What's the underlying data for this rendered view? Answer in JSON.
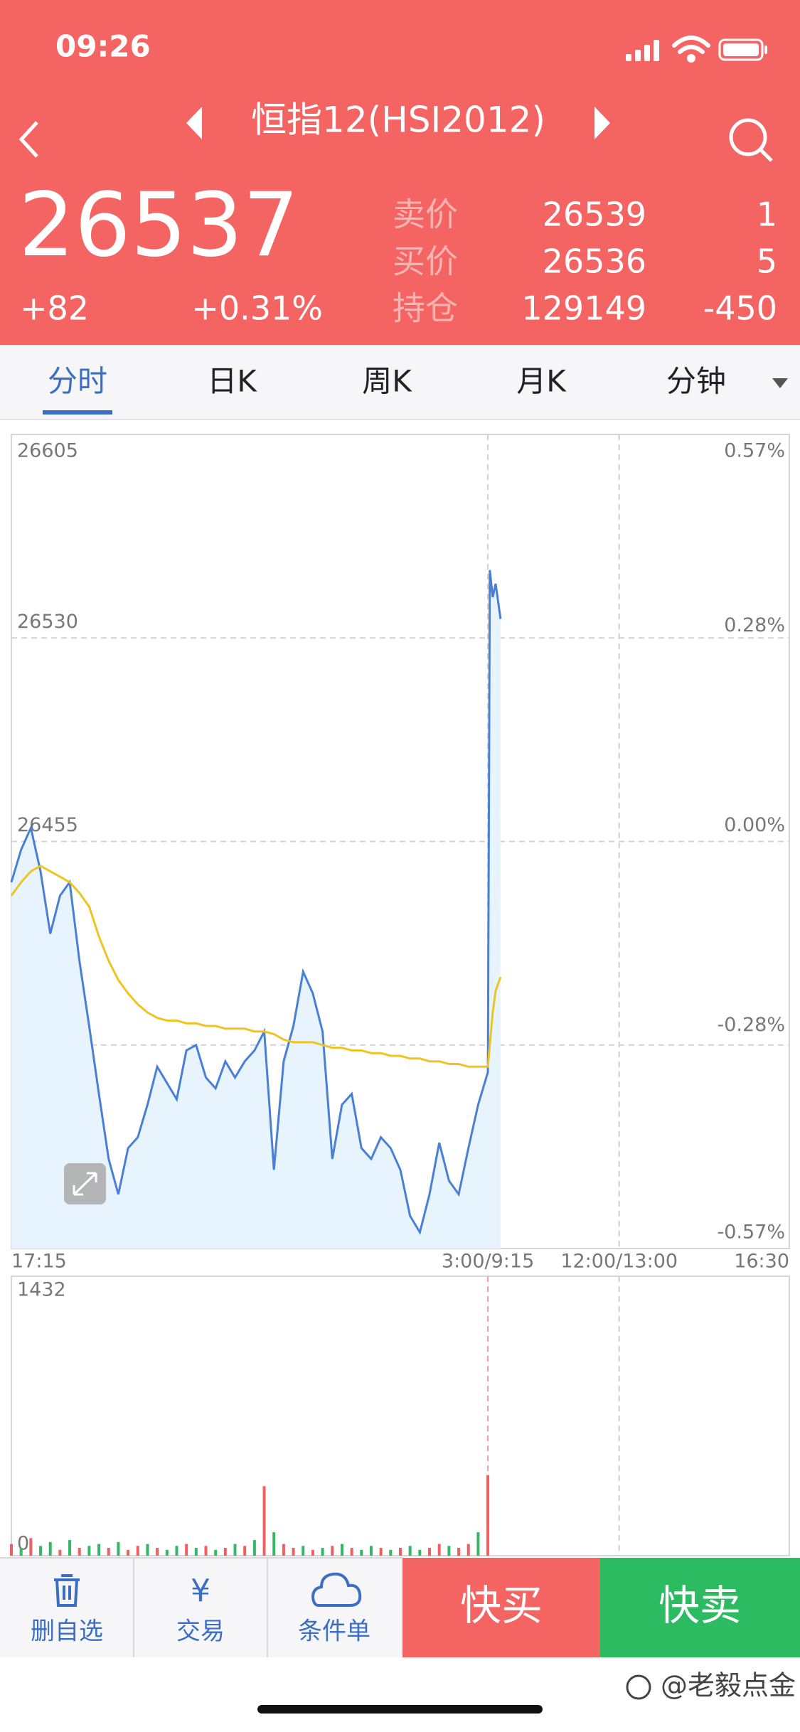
{
  "status_bar": {
    "time": "09:26"
  },
  "header": {
    "title": "恒指12(HSI2012)"
  },
  "quote": {
    "price": "26537",
    "change": "+82",
    "change_pct": "+0.31%",
    "rows": [
      {
        "label": "卖价",
        "value": "26539",
        "qty": "1"
      },
      {
        "label": "买价",
        "value": "26536",
        "qty": "5"
      },
      {
        "label": "持仓",
        "value": "129149",
        "qty": "-450"
      }
    ]
  },
  "tabs": [
    "分时",
    "日K",
    "周K",
    "月K",
    "分钟"
  ],
  "active_tab": 0,
  "chart_data": [
    {
      "type": "line",
      "x": [
        0,
        1,
        2,
        3,
        4,
        5,
        6,
        7,
        8,
        9,
        10,
        11,
        12,
        13,
        14,
        15,
        16,
        17,
        18,
        19,
        20,
        21,
        22,
        23,
        24,
        25,
        26,
        27,
        28,
        29,
        30,
        31,
        32,
        33,
        34,
        35,
        36,
        37,
        38,
        39,
        40,
        41,
        42,
        43,
        44,
        45,
        46,
        47,
        48,
        49,
        49.2,
        49.5,
        49.8,
        50.3
      ],
      "series": [
        {
          "color": "#4a7fd6",
          "fill": "#e8f4fd",
          "values": [
            26440,
            26452,
            26460,
            26444,
            26421,
            26435,
            26440,
            26411,
            26387,
            26362,
            26338,
            26325,
            26342,
            26346,
            26358,
            26372,
            26366,
            26360,
            26378,
            26380,
            26368,
            26364,
            26374,
            26368,
            26374,
            26378,
            26385,
            26334,
            26374,
            26387,
            26407,
            26399,
            26385,
            26338,
            26358,
            26362,
            26342,
            26338,
            26346,
            26342,
            26334,
            26317,
            26311,
            26325,
            26344,
            26330,
            26325,
            26342,
            26358,
            26370,
            26555,
            26545,
            26550,
            26537
          ]
        },
        {
          "color": "#f0c420",
          "values": [
            26435,
            26440,
            26444,
            26446,
            26444,
            26442,
            26440,
            26436,
            26431,
            26420,
            26411,
            26404,
            26399,
            26395,
            26392,
            26390,
            26389,
            26389,
            26388,
            26388,
            26387,
            26387,
            26386,
            26386,
            26386,
            26385,
            26385,
            26384,
            26382,
            26381,
            26381,
            26381,
            26380,
            26379,
            26379,
            26378,
            26378,
            26377,
            26377,
            26376,
            26376,
            26375,
            26375,
            26374,
            26374,
            26373,
            26373,
            26372,
            26372,
            26372,
            26380,
            26392,
            26400,
            26405
          ]
        }
      ],
      "xlim": [
        0,
        80
      ],
      "xticks": [
        {
          "value": 0,
          "label": "17:15"
        },
        {
          "value": 49,
          "label": "3:00/9:15"
        },
        {
          "value": 62.5,
          "label": "12:00/13:00"
        },
        {
          "value": 80,
          "label": "16:30"
        }
      ],
      "ylim": [
        26305,
        26605
      ],
      "yticks": [
        26305,
        26380,
        26455,
        26530,
        26605
      ],
      "y2lim": [
        -0.57,
        0.57
      ],
      "y2ticks": [
        {
          "value": 0.57,
          "label": "0.57%"
        },
        {
          "value": 0.28,
          "label": "0.28%"
        },
        {
          "value": 0,
          "label": "0.00%"
        },
        {
          "value": -0.28,
          "label": "-0.28%"
        },
        {
          "value": -0.57,
          "label": "-0.57%"
        }
      ],
      "grid": true
    },
    {
      "type": "bar",
      "x": [
        0,
        1,
        2,
        3,
        4,
        5,
        6,
        7,
        8,
        9,
        10,
        11,
        12,
        13,
        14,
        15,
        16,
        17,
        18,
        19,
        20,
        21,
        22,
        23,
        24,
        25,
        26,
        27,
        28,
        29,
        30,
        31,
        32,
        33,
        34,
        35,
        36,
        37,
        38,
        39,
        40,
        41,
        42,
        43,
        44,
        45,
        46,
        47,
        48,
        49
      ],
      "values": [
        60,
        40,
        90,
        50,
        70,
        30,
        80,
        40,
        50,
        60,
        40,
        70,
        30,
        50,
        60,
        40,
        30,
        50,
        60,
        40,
        50,
        30,
        40,
        60,
        50,
        80,
        356,
        120,
        60,
        40,
        50,
        30,
        40,
        50,
        60,
        40,
        30,
        50,
        40,
        30,
        40,
        50,
        30,
        40,
        60,
        50,
        40,
        60,
        120,
        413
      ],
      "colors": [
        "#f06060",
        "#35b865",
        "#f06060",
        "#35b865",
        "#35b865",
        "#f06060",
        "#35b865",
        "#f06060",
        "#35b865",
        "#35b865",
        "#f06060",
        "#35b865",
        "#f06060",
        "#f06060",
        "#35b865",
        "#f06060",
        "#35b865",
        "#35b865",
        "#f06060",
        "#35b865",
        "#f06060",
        "#35b865",
        "#f06060",
        "#35b865",
        "#f06060",
        "#35b865",
        "#f06060",
        "#35b865",
        "#f06060",
        "#f06060",
        "#35b865",
        "#f06060",
        "#35b865",
        "#f06060",
        "#35b865",
        "#f06060",
        "#35b865",
        "#35b865",
        "#f06060",
        "#35b865",
        "#f06060",
        "#35b865",
        "#35b865",
        "#f06060",
        "#f06060",
        "#35b865",
        "#f06060",
        "#f06060",
        "#35b865",
        "#f06060"
      ],
      "xlim": [
        0,
        80
      ],
      "ylim": [
        0,
        1432
      ],
      "yticks": [
        0,
        1432
      ]
    }
  ],
  "toolbar": [
    "删自选",
    "交易",
    "条件单"
  ],
  "buy": "快买",
  "sell": "快卖",
  "watermark": "@老毅点金"
}
